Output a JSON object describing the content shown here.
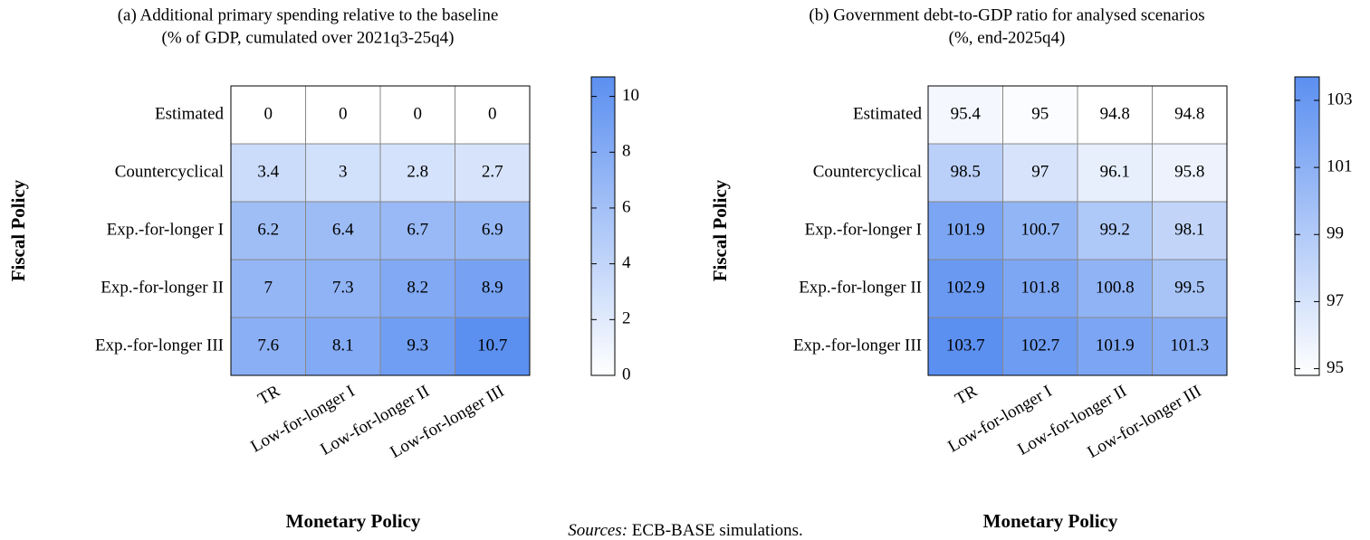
{
  "chart_data": [
    {
      "type": "heatmap",
      "title": "(a) Additional primary spending relative to the baseline",
      "subtitle": "(% of GDP, cumulated over 2021q3-25q4)",
      "x_label": "Monetary Policy",
      "y_label": "Fiscal Policy",
      "categories": [
        "TR",
        "Low-for-longer I",
        "Low-for-longer II",
        "Low-for-longer III"
      ],
      "rows": [
        "Estimated",
        "Countercyclical",
        "Exp.-for-longer I",
        "Exp.-for-longer II",
        "Exp.-for-longer III"
      ],
      "values": [
        [
          0,
          0,
          0,
          0
        ],
        [
          3.4,
          3,
          2.8,
          2.7
        ],
        [
          6.2,
          6.4,
          6.7,
          6.9
        ],
        [
          7,
          7.3,
          8.2,
          8.9
        ],
        [
          7.6,
          8.1,
          9.3,
          10.7
        ]
      ],
      "zlim": [
        0,
        10.7
      ],
      "zticks": [
        0,
        2,
        4,
        6,
        8,
        10
      ],
      "colormap": [
        "#ffffff",
        "#5b8ff0"
      ]
    },
    {
      "type": "heatmap",
      "title": "(b) Government debt-to-GDP ratio for analysed scenarios",
      "subtitle": "(%, end-2025q4)",
      "x_label": "Monetary Policy",
      "y_label": "Fiscal Policy",
      "categories": [
        "TR",
        "Low-for-longer I",
        "Low-for-longer II",
        "Low-for-longer III"
      ],
      "rows": [
        "Estimated",
        "Countercyclical",
        "Exp.-for-longer I",
        "Exp.-for-longer II",
        "Exp.-for-longer III"
      ],
      "values": [
        [
          95.4,
          95,
          94.8,
          94.8
        ],
        [
          98.5,
          97,
          96.1,
          95.8
        ],
        [
          101.9,
          100.7,
          99.2,
          98.1
        ],
        [
          102.9,
          101.8,
          100.8,
          99.5
        ],
        [
          103.7,
          102.7,
          101.9,
          101.3
        ]
      ],
      "zlim": [
        94.8,
        103.7
      ],
      "zticks": [
        95,
        97,
        99,
        101,
        103
      ],
      "colormap": [
        "#ffffff",
        "#5b8ff0"
      ]
    }
  ],
  "source": {
    "prefix": "Sources:",
    "text": "ECB-BASE simulations."
  }
}
